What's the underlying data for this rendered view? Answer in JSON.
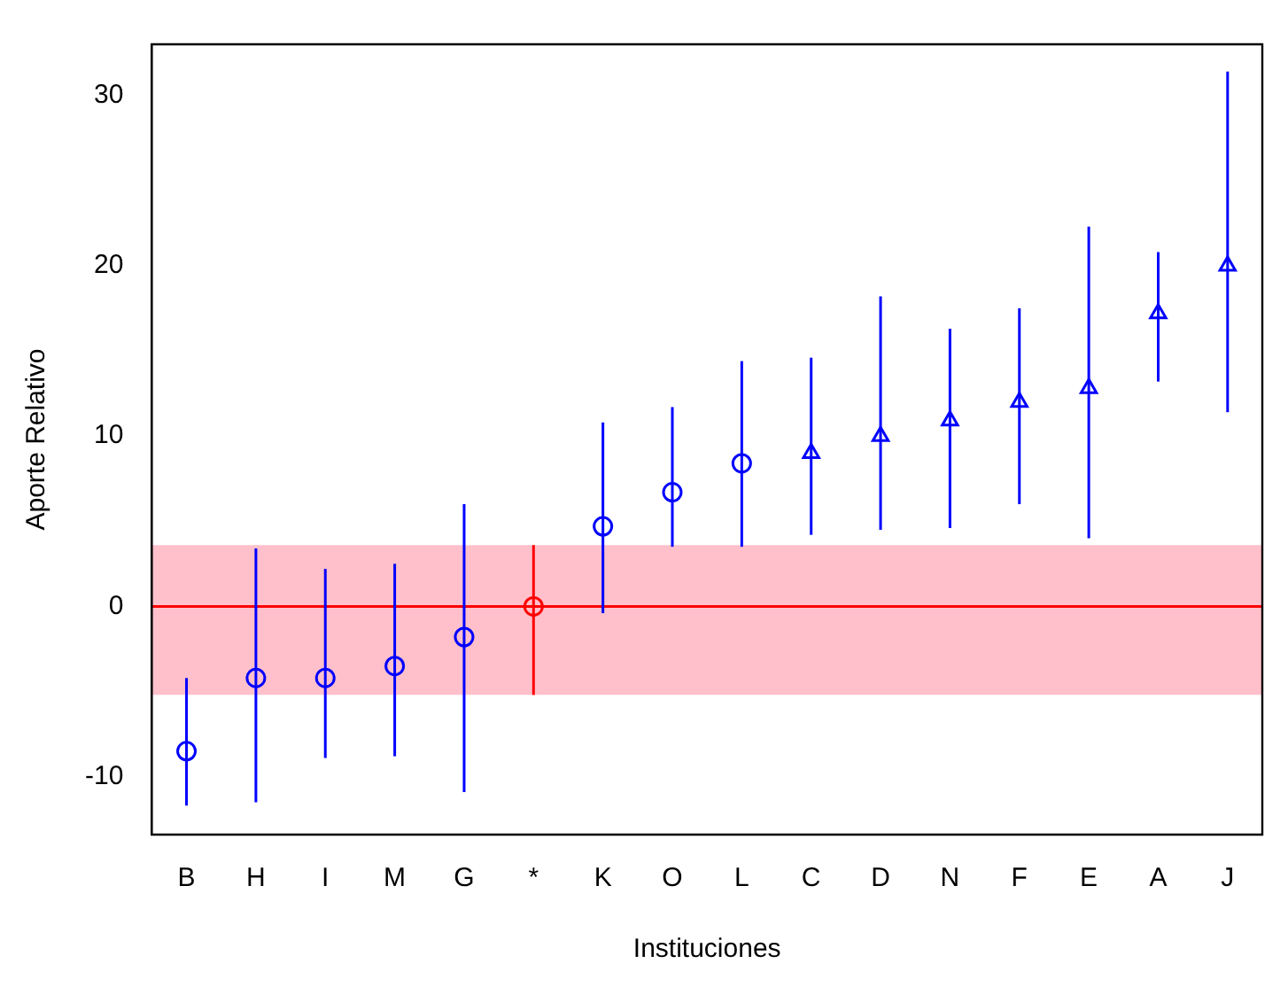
{
  "chart_data": {
    "type": "scatter",
    "xlabel": "Instituciones",
    "ylabel": "Aporte Relativo",
    "categories": [
      "B",
      "H",
      "I",
      "M",
      "G",
      "*",
      "K",
      "O",
      "L",
      "C",
      "D",
      "N",
      "F",
      "E",
      "A",
      "J"
    ],
    "series": [
      {
        "color": "#0000ff",
        "marker": "circle",
        "values": [
          -8.5,
          -4.2,
          -4.2,
          -3.5,
          -1.8,
          null,
          4.7,
          6.7,
          8.4,
          null,
          null,
          null,
          null,
          null,
          null,
          null
        ],
        "errors": [
          [
            -11.7,
            -4.2
          ],
          [
            -11.5,
            3.4
          ],
          [
            -8.9,
            2.2
          ],
          [
            -8.8,
            2.5
          ],
          [
            -10.9,
            6.0
          ],
          null,
          [
            -0.4,
            10.8
          ],
          [
            3.5,
            11.7
          ],
          [
            3.5,
            14.4
          ],
          null,
          null,
          null,
          null,
          null,
          null,
          null
        ]
      },
      {
        "color": "#ff0000",
        "marker": "circle",
        "values": [
          null,
          null,
          null,
          null,
          null,
          0,
          null,
          null,
          null,
          null,
          null,
          null,
          null,
          null,
          null,
          null
        ],
        "errors": [
          null,
          null,
          null,
          null,
          null,
          [
            -5.2,
            3.6
          ],
          null,
          null,
          null,
          null,
          null,
          null,
          null,
          null,
          null,
          null
        ]
      },
      {
        "color": "#0000ff",
        "marker": "triangle",
        "values": [
          null,
          null,
          null,
          null,
          null,
          null,
          null,
          null,
          null,
          9.0,
          10.0,
          10.9,
          12.0,
          12.8,
          17.2,
          20.0
        ],
        "errors": [
          null,
          null,
          null,
          null,
          null,
          null,
          null,
          null,
          null,
          [
            4.2,
            14.6
          ],
          [
            4.5,
            18.2
          ],
          [
            4.6,
            16.3
          ],
          [
            6.0,
            17.5
          ],
          [
            4.0,
            22.3
          ],
          [
            13.2,
            20.8
          ],
          [
            11.4,
            31.4
          ]
        ]
      }
    ],
    "bands": [
      {
        "axis": "y",
        "from": -5.2,
        "to": 3.6,
        "color": "#ffc0cb"
      }
    ],
    "ref_lines": [
      {
        "axis": "y",
        "value": 0,
        "color": "#ff0000"
      }
    ],
    "ylim": [
      -13.4,
      33
    ],
    "yticks": [
      -10,
      0,
      10,
      20,
      30
    ],
    "grid": false,
    "legend": false
  }
}
